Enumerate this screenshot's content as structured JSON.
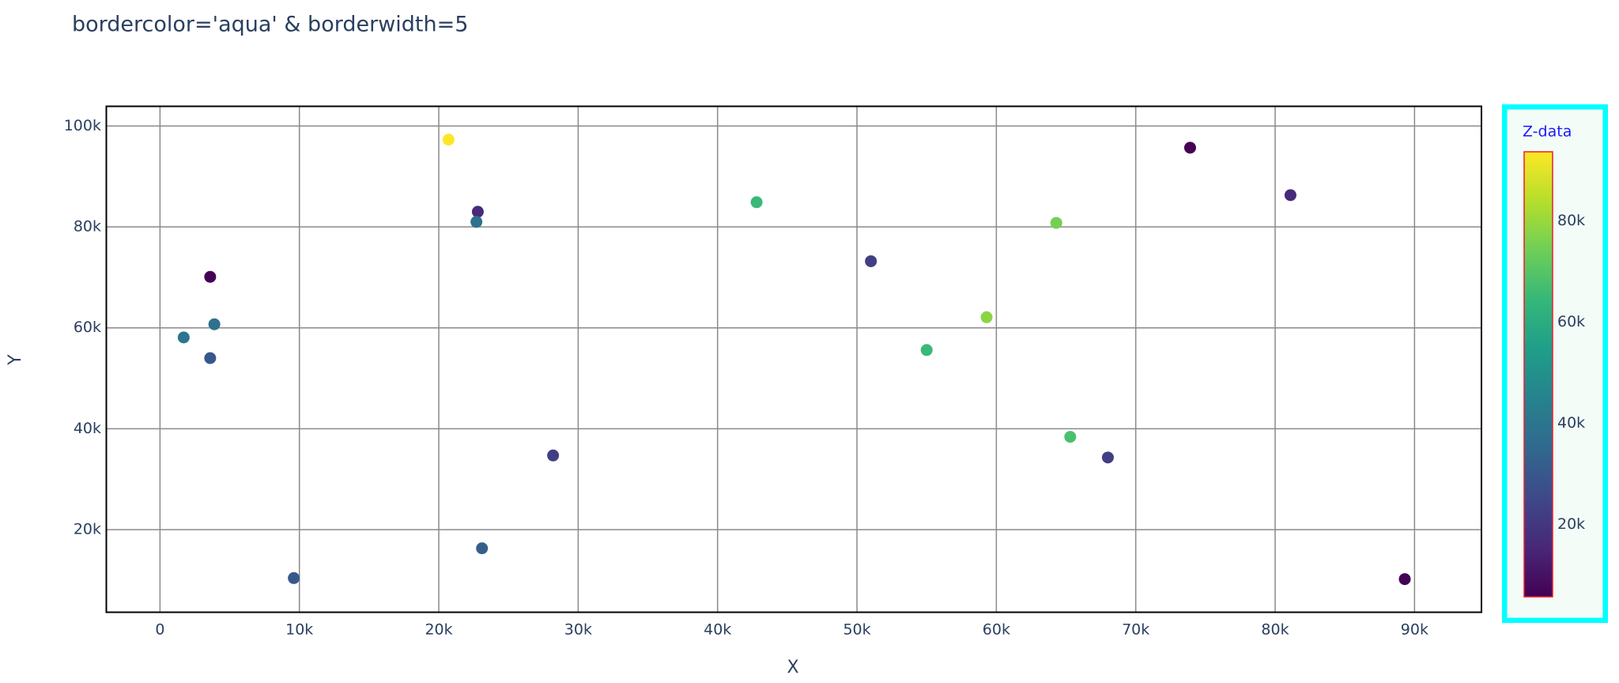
{
  "chart_data": {
    "type": "scatter",
    "title": "bordercolor='aqua' & borderwidth=5",
    "x_label": "X",
    "y_label": "Y",
    "x": [
      1700,
      3600,
      3900,
      3600,
      9600,
      20700,
      22800,
      22700,
      23100,
      28200,
      42800,
      51000,
      55000,
      59300,
      64300,
      65300,
      68000,
      73900,
      81100,
      89300
    ],
    "y": [
      58100,
      70100,
      60700,
      54000,
      10400,
      97300,
      83000,
      81000,
      16300,
      34700,
      84900,
      73200,
      55600,
      62100,
      80800,
      38400,
      34300,
      95700,
      86300,
      10200
    ],
    "z": [
      40000,
      6000,
      38000,
      30000,
      30000,
      93700,
      16000,
      38000,
      32000,
      22000,
      65000,
      22000,
      65000,
      78000,
      75000,
      68000,
      22000,
      6000,
      16000,
      6000
    ],
    "xlim": [
      -3850,
      94800
    ],
    "ylim": [
      3630,
      103900
    ],
    "xticks": [
      0,
      {
        "value": 10000,
        "label": "10k"
      },
      {
        "value": 20000,
        "label": "20k"
      },
      {
        "value": 30000,
        "label": "30k"
      },
      {
        "value": 40000,
        "label": "40k"
      },
      {
        "value": 50000,
        "label": "50k"
      },
      {
        "value": 60000,
        "label": "60k"
      },
      {
        "value": 70000,
        "label": "70k"
      },
      {
        "value": 80000,
        "label": "80k"
      },
      {
        "value": 90000,
        "label": "90k"
      }
    ],
    "yticks": [
      {
        "value": 20000,
        "label": "20k"
      },
      {
        "value": 40000,
        "label": "40k"
      },
      {
        "value": 60000,
        "label": "60k"
      },
      {
        "value": 80000,
        "label": "80k"
      },
      {
        "value": 100000,
        "label": "100k"
      }
    ],
    "grid": true,
    "colorbar": {
      "title": "Z-data",
      "zlim": [
        5700,
        93700
      ],
      "zticks": [
        {
          "value": 20000,
          "label": "20k"
        },
        {
          "value": 40000,
          "label": "40k"
        },
        {
          "value": 60000,
          "label": "60k"
        },
        {
          "value": 80000,
          "label": "80k"
        }
      ],
      "bordercolor": "aqua",
      "borderwidth": 5,
      "outlinecolor": "#e8202a",
      "colorscale": [
        "#440154",
        "#482878",
        "#3e4989",
        "#31688e",
        "#26828e",
        "#1f9e89",
        "#35b779",
        "#6ece58",
        "#b5de2b",
        "#fde725"
      ]
    }
  }
}
